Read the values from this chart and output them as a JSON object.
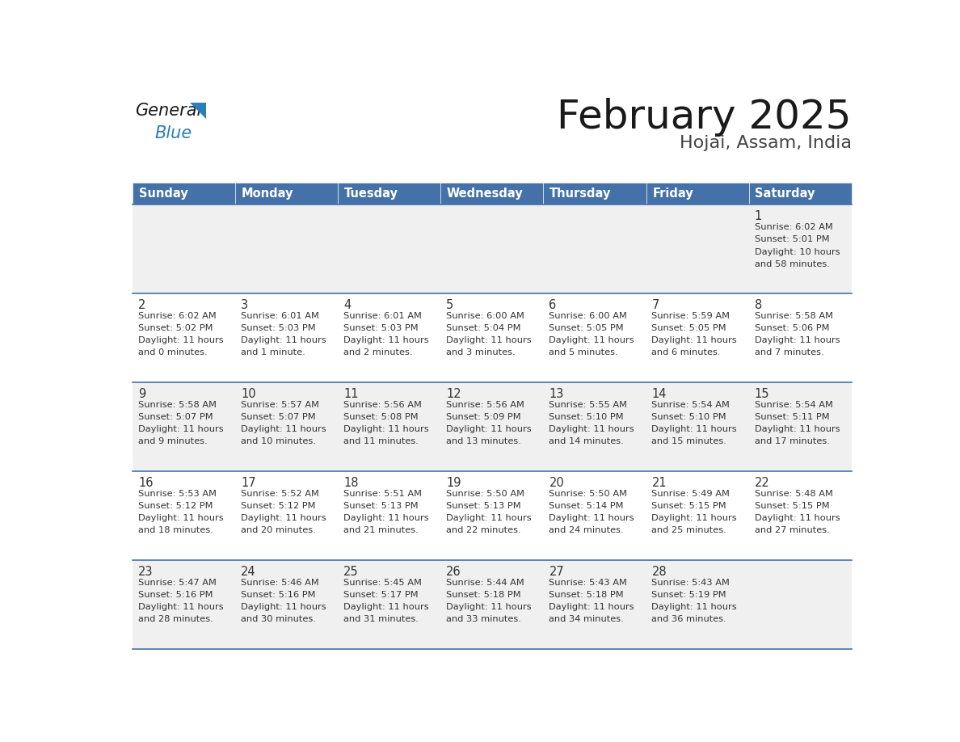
{
  "title": "February 2025",
  "subtitle": "Hojai, Assam, India",
  "header_bg": "#4472a8",
  "header_text_color": "#ffffff",
  "header_days": [
    "Sunday",
    "Monday",
    "Tuesday",
    "Wednesday",
    "Thursday",
    "Friday",
    "Saturday"
  ],
  "row_bg_odd": "#f0f0f0",
  "row_bg_even": "#ffffff",
  "cell_border_color": "#4472a8",
  "day_number_color": "#333333",
  "info_text_color": "#333333",
  "logo_general_color": "#222222",
  "logo_blue_color": "#2980b9",
  "calendar_data": [
    {
      "day": 1,
      "col": 6,
      "row": 0,
      "sunrise": "6:02 AM",
      "sunset": "5:01 PM",
      "daylight_hours": 10,
      "daylight_minutes": 58
    },
    {
      "day": 2,
      "col": 0,
      "row": 1,
      "sunrise": "6:02 AM",
      "sunset": "5:02 PM",
      "daylight_hours": 11,
      "daylight_minutes": 0
    },
    {
      "day": 3,
      "col": 1,
      "row": 1,
      "sunrise": "6:01 AM",
      "sunset": "5:03 PM",
      "daylight_hours": 11,
      "daylight_minutes": 1
    },
    {
      "day": 4,
      "col": 2,
      "row": 1,
      "sunrise": "6:01 AM",
      "sunset": "5:03 PM",
      "daylight_hours": 11,
      "daylight_minutes": 2
    },
    {
      "day": 5,
      "col": 3,
      "row": 1,
      "sunrise": "6:00 AM",
      "sunset": "5:04 PM",
      "daylight_hours": 11,
      "daylight_minutes": 3
    },
    {
      "day": 6,
      "col": 4,
      "row": 1,
      "sunrise": "6:00 AM",
      "sunset": "5:05 PM",
      "daylight_hours": 11,
      "daylight_minutes": 5
    },
    {
      "day": 7,
      "col": 5,
      "row": 1,
      "sunrise": "5:59 AM",
      "sunset": "5:05 PM",
      "daylight_hours": 11,
      "daylight_minutes": 6
    },
    {
      "day": 8,
      "col": 6,
      "row": 1,
      "sunrise": "5:58 AM",
      "sunset": "5:06 PM",
      "daylight_hours": 11,
      "daylight_minutes": 7
    },
    {
      "day": 9,
      "col": 0,
      "row": 2,
      "sunrise": "5:58 AM",
      "sunset": "5:07 PM",
      "daylight_hours": 11,
      "daylight_minutes": 9
    },
    {
      "day": 10,
      "col": 1,
      "row": 2,
      "sunrise": "5:57 AM",
      "sunset": "5:07 PM",
      "daylight_hours": 11,
      "daylight_minutes": 10
    },
    {
      "day": 11,
      "col": 2,
      "row": 2,
      "sunrise": "5:56 AM",
      "sunset": "5:08 PM",
      "daylight_hours": 11,
      "daylight_minutes": 11
    },
    {
      "day": 12,
      "col": 3,
      "row": 2,
      "sunrise": "5:56 AM",
      "sunset": "5:09 PM",
      "daylight_hours": 11,
      "daylight_minutes": 13
    },
    {
      "day": 13,
      "col": 4,
      "row": 2,
      "sunrise": "5:55 AM",
      "sunset": "5:10 PM",
      "daylight_hours": 11,
      "daylight_minutes": 14
    },
    {
      "day": 14,
      "col": 5,
      "row": 2,
      "sunrise": "5:54 AM",
      "sunset": "5:10 PM",
      "daylight_hours": 11,
      "daylight_minutes": 15
    },
    {
      "day": 15,
      "col": 6,
      "row": 2,
      "sunrise": "5:54 AM",
      "sunset": "5:11 PM",
      "daylight_hours": 11,
      "daylight_minutes": 17
    },
    {
      "day": 16,
      "col": 0,
      "row": 3,
      "sunrise": "5:53 AM",
      "sunset": "5:12 PM",
      "daylight_hours": 11,
      "daylight_minutes": 18
    },
    {
      "day": 17,
      "col": 1,
      "row": 3,
      "sunrise": "5:52 AM",
      "sunset": "5:12 PM",
      "daylight_hours": 11,
      "daylight_minutes": 20
    },
    {
      "day": 18,
      "col": 2,
      "row": 3,
      "sunrise": "5:51 AM",
      "sunset": "5:13 PM",
      "daylight_hours": 11,
      "daylight_minutes": 21
    },
    {
      "day": 19,
      "col": 3,
      "row": 3,
      "sunrise": "5:50 AM",
      "sunset": "5:13 PM",
      "daylight_hours": 11,
      "daylight_minutes": 22
    },
    {
      "day": 20,
      "col": 4,
      "row": 3,
      "sunrise": "5:50 AM",
      "sunset": "5:14 PM",
      "daylight_hours": 11,
      "daylight_minutes": 24
    },
    {
      "day": 21,
      "col": 5,
      "row": 3,
      "sunrise": "5:49 AM",
      "sunset": "5:15 PM",
      "daylight_hours": 11,
      "daylight_minutes": 25
    },
    {
      "day": 22,
      "col": 6,
      "row": 3,
      "sunrise": "5:48 AM",
      "sunset": "5:15 PM",
      "daylight_hours": 11,
      "daylight_minutes": 27
    },
    {
      "day": 23,
      "col": 0,
      "row": 4,
      "sunrise": "5:47 AM",
      "sunset": "5:16 PM",
      "daylight_hours": 11,
      "daylight_minutes": 28
    },
    {
      "day": 24,
      "col": 1,
      "row": 4,
      "sunrise": "5:46 AM",
      "sunset": "5:16 PM",
      "daylight_hours": 11,
      "daylight_minutes": 30
    },
    {
      "day": 25,
      "col": 2,
      "row": 4,
      "sunrise": "5:45 AM",
      "sunset": "5:17 PM",
      "daylight_hours": 11,
      "daylight_minutes": 31
    },
    {
      "day": 26,
      "col": 3,
      "row": 4,
      "sunrise": "5:44 AM",
      "sunset": "5:18 PM",
      "daylight_hours": 11,
      "daylight_minutes": 33
    },
    {
      "day": 27,
      "col": 4,
      "row": 4,
      "sunrise": "5:43 AM",
      "sunset": "5:18 PM",
      "daylight_hours": 11,
      "daylight_minutes": 34
    },
    {
      "day": 28,
      "col": 5,
      "row": 4,
      "sunrise": "5:43 AM",
      "sunset": "5:19 PM",
      "daylight_hours": 11,
      "daylight_minutes": 36
    }
  ],
  "num_rows": 5,
  "num_cols": 7
}
